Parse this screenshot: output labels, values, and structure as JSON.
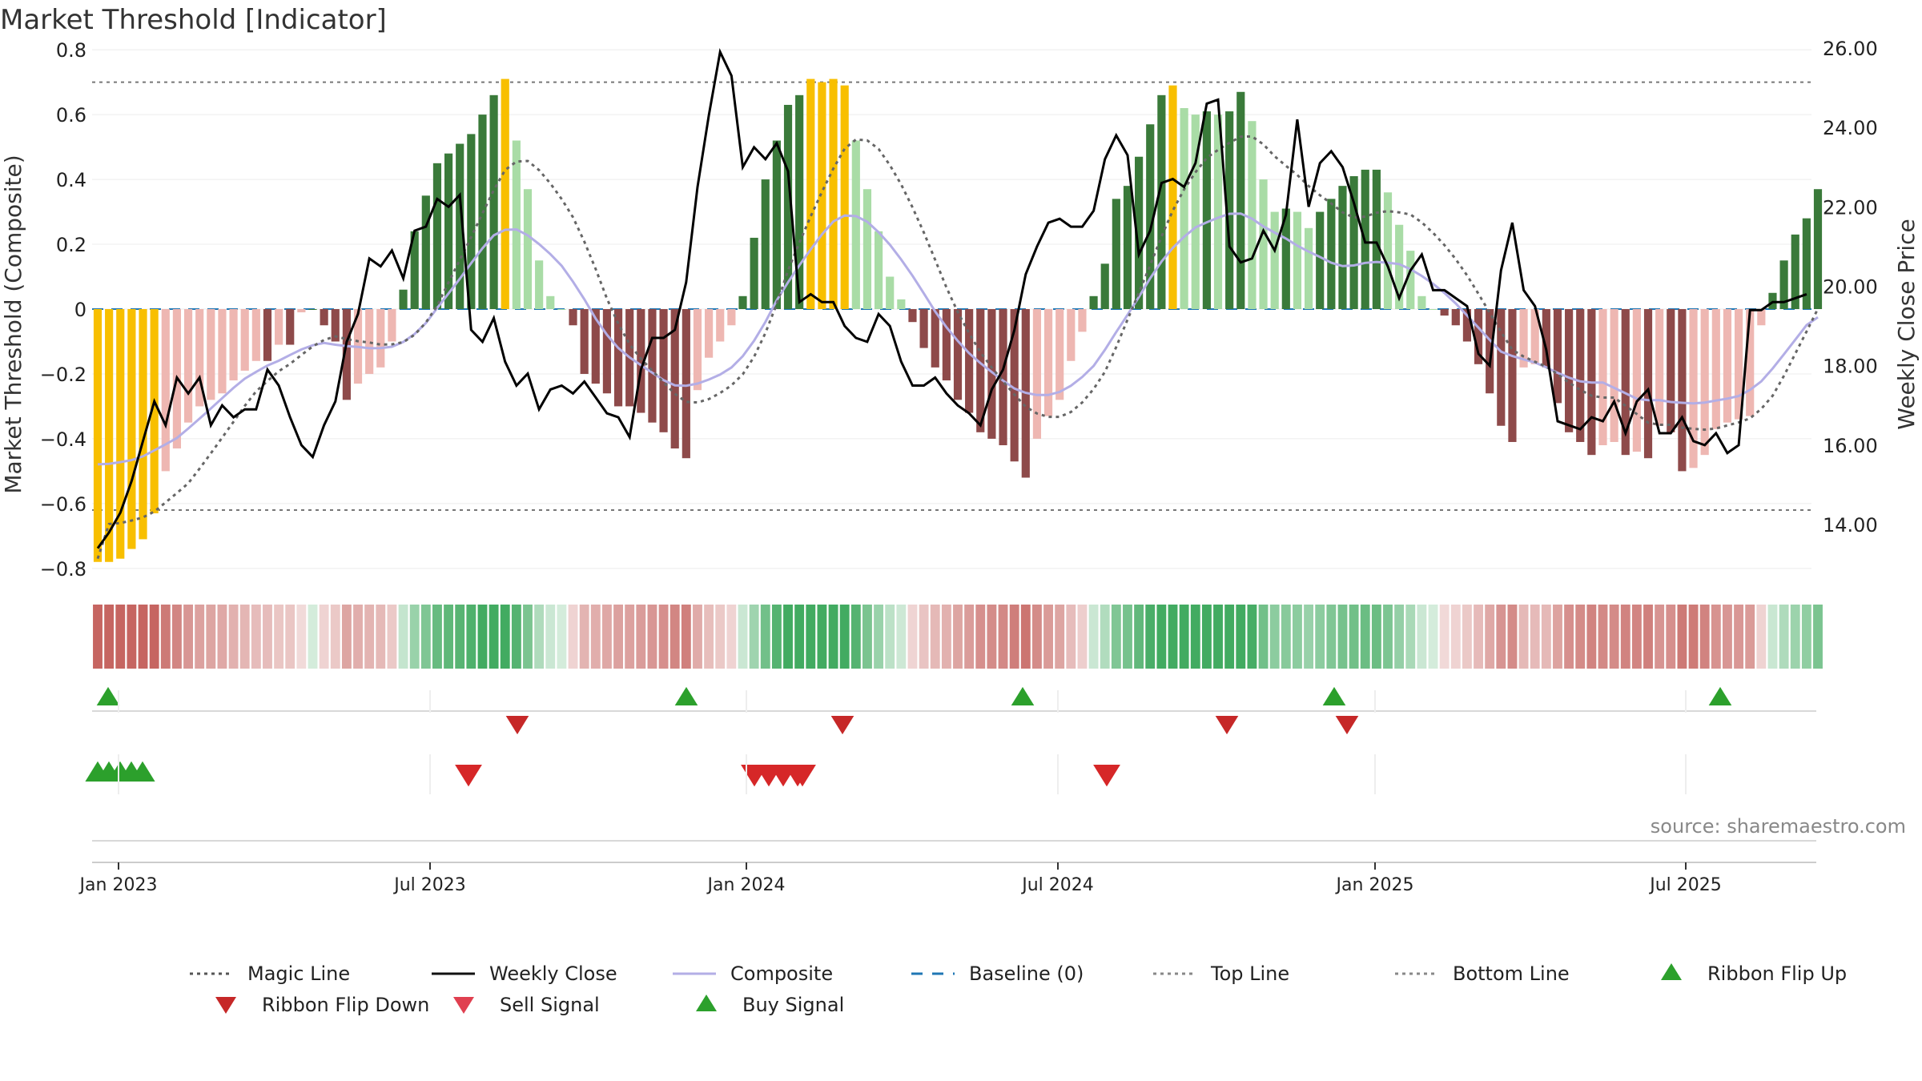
{
  "chart_data": {
    "type": "bar",
    "title": "Market Threshold [Indicator]",
    "ylabel": "Market Threshold (Composite)",
    "y2label": "Weekly Close Price",
    "ylim": [
      -0.83,
      0.83
    ],
    "y2lim": [
      12.65,
      26.2
    ],
    "yticks": [
      "0.8",
      "0.6",
      "0.4",
      "0.2",
      "0",
      "−0.2",
      "−0.4",
      "−0.6",
      "−0.8"
    ],
    "y2ticks": [
      "26.00",
      "24.00",
      "22.00",
      "20.00",
      "18.00",
      "16.00",
      "14.00"
    ],
    "xticks": [
      "Jan 2023",
      "Jul 2023",
      "Jan 2024",
      "Jul 2024",
      "Jan 2025",
      "Jul 2025"
    ],
    "top_line": 0.7,
    "bottom_line": -0.62,
    "baseline": 0,
    "source": "source: sharemaestro.com",
    "weeks": 151,
    "composite_values": [
      -0.78,
      -0.78,
      -0.77,
      -0.74,
      -0.71,
      -0.63,
      -0.5,
      -0.43,
      -0.35,
      -0.3,
      -0.28,
      -0.26,
      -0.22,
      -0.19,
      -0.16,
      -0.16,
      -0.11,
      -0.11,
      -0.01,
      0,
      -0.05,
      -0.1,
      -0.28,
      -0.23,
      -0.2,
      -0.18,
      -0.1,
      0.06,
      0.24,
      0.35,
      0.45,
      0.48,
      0.51,
      0.54,
      0.6,
      0.66,
      0.71,
      0.52,
      0.37,
      0.15,
      0.04,
      0,
      -0.05,
      -0.2,
      -0.23,
      -0.26,
      -0.3,
      -0.3,
      -0.32,
      -0.35,
      -0.38,
      -0.43,
      -0.46,
      -0.25,
      -0.15,
      -0.1,
      -0.05,
      0.04,
      0.22,
      0.4,
      0.52,
      0.63,
      0.66,
      0.71,
      0.7,
      0.71,
      0.69,
      0.52,
      0.37,
      0.24,
      0.1,
      0.03,
      -0.04,
      -0.12,
      -0.18,
      -0.22,
      -0.28,
      -0.32,
      -0.38,
      -0.4,
      -0.42,
      -0.47,
      -0.52,
      -0.4,
      -0.33,
      -0.28,
      -0.16,
      -0.07,
      0.04,
      0.14,
      0.34,
      0.38,
      0.47,
      0.57,
      0.66,
      0.69,
      0.62,
      0.6,
      0.61,
      0.6,
      0.61,
      0.67,
      0.58,
      0.4,
      0.3,
      0.31,
      0.3,
      0.25,
      0.3,
      0.34,
      0.38,
      0.41,
      0.43,
      0.43,
      0.36,
      0.26,
      0.18,
      0.04,
      0,
      -0.02,
      -0.05,
      -0.1,
      -0.17,
      -0.26,
      -0.36,
      -0.41,
      -0.18,
      -0.17,
      -0.18,
      -0.29,
      -0.38,
      -0.41,
      -0.45,
      -0.42,
      -0.41,
      -0.45,
      -0.44,
      -0.46,
      -0.36,
      -0.38,
      -0.5,
      -0.49,
      -0.45,
      -0.37,
      -0.35,
      -0.34,
      -0.33,
      -0.05,
      0.05,
      0.15,
      0.23,
      0.28,
      0.37
    ],
    "weekly_close": [
      13.4,
      13.8,
      14.3,
      15.1,
      16.1,
      17.1,
      16.5,
      17.7,
      17.3,
      17.7,
      16.5,
      17.0,
      16.7,
      16.9,
      16.9,
      17.9,
      17.5,
      16.7,
      16.0,
      15.7,
      16.5,
      17.1,
      18.6,
      19.3,
      20.7,
      20.5,
      20.9,
      20.2,
      21.4,
      21.5,
      22.2,
      22.0,
      22.3,
      18.9,
      18.6,
      19.2,
      18.1,
      17.5,
      17.8,
      16.9,
      17.4,
      17.5,
      17.3,
      17.6,
      17.2,
      16.8,
      16.7,
      16.2,
      17.9,
      18.7,
      18.7,
      18.9,
      20.1,
      22.5,
      24.3,
      25.9,
      25.3,
      23.0,
      23.5,
      23.2,
      23.6,
      22.9,
      19.6,
      19.8,
      19.6,
      19.6,
      19.0,
      18.7,
      18.6,
      19.3,
      19.0,
      18.1,
      17.5,
      17.5,
      17.7,
      17.3,
      17.0,
      16.8,
      16.5,
      17.4,
      17.9,
      18.9,
      20.3,
      21.0,
      21.6,
      21.7,
      21.5,
      21.5,
      21.9,
      23.2,
      23.8,
      23.3,
      20.8,
      21.4,
      22.6,
      22.7,
      22.5,
      23.1,
      24.6,
      24.7,
      21.0,
      20.6,
      20.7,
      21.4,
      20.9,
      21.8,
      24.2,
      22.0,
      23.1,
      23.4,
      23.0,
      22.1,
      21.1,
      21.1,
      20.5,
      19.7,
      20.4,
      20.8,
      19.9,
      19.9,
      19.7,
      19.5,
      18.3,
      18.0,
      20.4,
      21.6,
      19.9,
      19.5,
      18.4,
      16.6,
      16.5,
      16.4,
      16.7,
      16.6,
      17.1,
      16.3,
      17.1,
      17.4,
      16.3,
      16.3,
      16.7,
      16.1,
      16.0,
      16.3,
      15.8,
      16.0,
      19.4,
      19.4,
      19.6,
      19.6,
      19.7,
      19.8
    ],
    "magic_line_start": -0.77,
    "ribbon_flip_up": [
      "Jan 2023",
      "Dec 2023",
      "Jun 2024",
      "Dec 2024",
      "Jul 2025"
    ],
    "ribbon_flip_down": [
      "Sep 2023",
      "Feb 2024",
      "Nov 2024",
      "Dec 2024"
    ],
    "sell_signal": [
      "Aug 2023",
      "Jan 2024",
      "Jan 2024",
      "Jan 2024",
      "Jan 2024",
      "Feb 2024",
      "Aug 2024"
    ],
    "buy_signal": [
      "Dec 2022",
      "Dec 2022",
      "Jan 2023",
      "Jan 2023",
      "Jan 2023"
    ],
    "colors": {
      "strong_up": "#3a7a3a",
      "weak_up": "#a9dca6",
      "strong_down": "#8e4a4a",
      "weak_down": "#eeb7b2",
      "extreme": "#f8bf00",
      "weekly_close": "#000000",
      "composite": "#b3aee6",
      "magic": "#666666",
      "baseline": "#1f77b4",
      "buy": "#2ca02c",
      "sell": "#d62728",
      "flip_down": "#c62828"
    }
  },
  "legend": [
    {
      "label": "Magic Line",
      "icon": "dotted-line"
    },
    {
      "label": "Weekly Close",
      "icon": "solid-line"
    },
    {
      "label": "Composite",
      "icon": "lavender-line"
    },
    {
      "label": "Baseline (0)",
      "icon": "dashed-line"
    },
    {
      "label": "Top Line",
      "icon": "dotted-gray-line"
    },
    {
      "label": "Bottom Line",
      "icon": "dotted-gray-line"
    },
    {
      "label": "Ribbon Flip Up",
      "icon": "green-up-triangle"
    },
    {
      "label": "Ribbon Flip Down",
      "icon": "red-down-triangle"
    },
    {
      "label": "Sell Signal",
      "icon": "red-down-triangle"
    },
    {
      "label": "Buy Signal",
      "icon": "green-up-triangle"
    }
  ]
}
